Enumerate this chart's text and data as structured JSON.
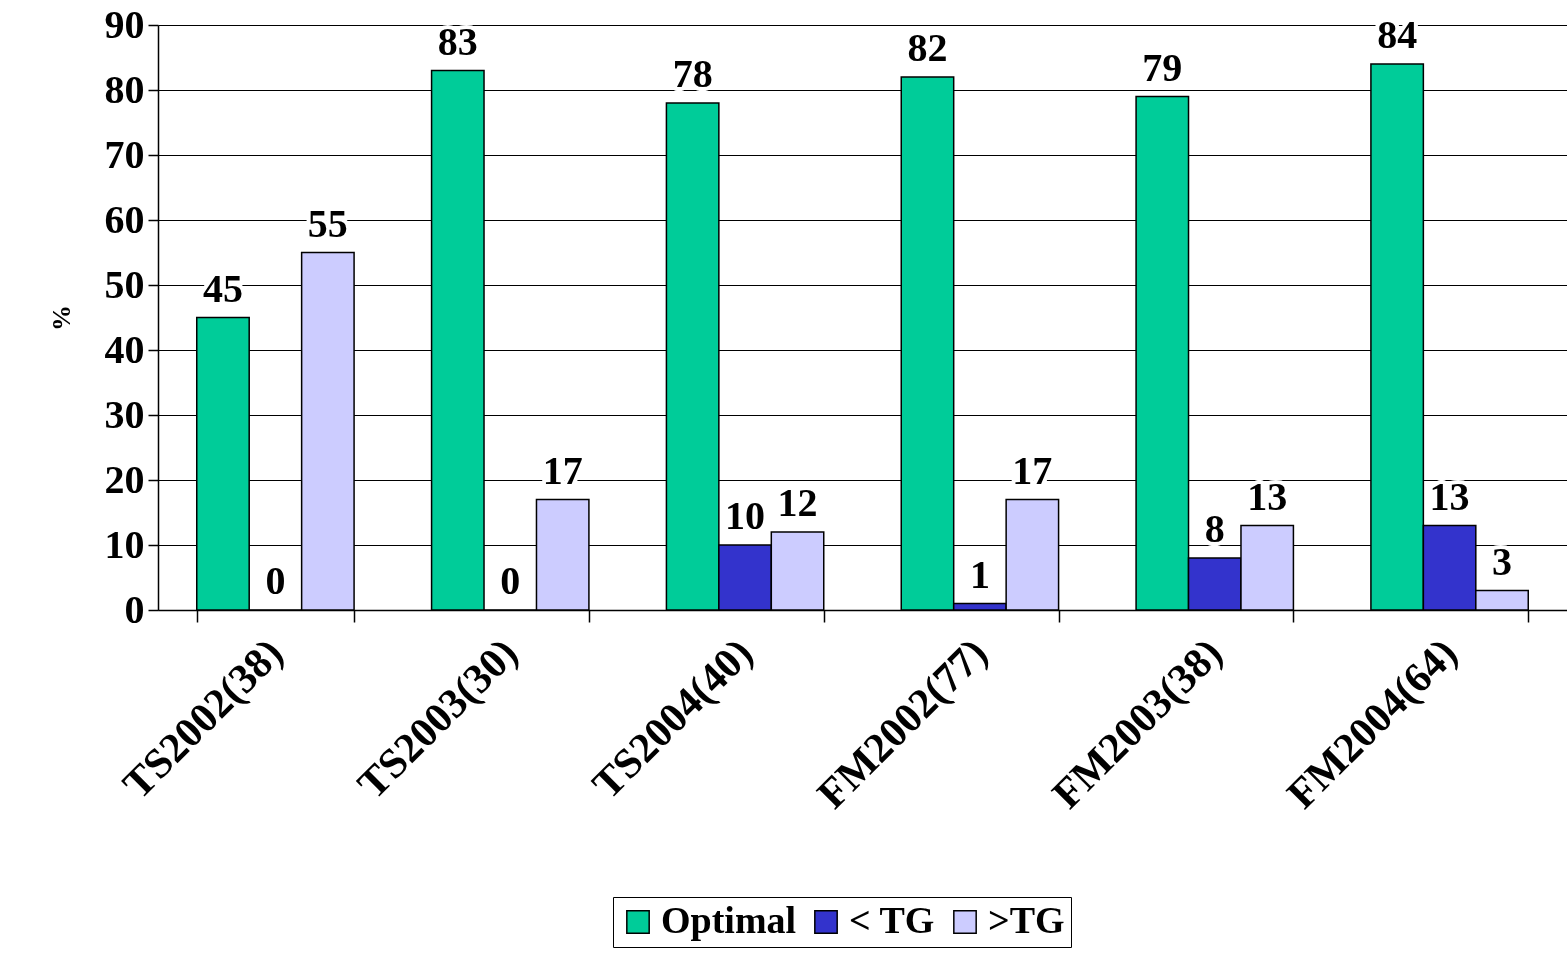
{
  "chart_data": {
    "type": "bar",
    "ylabel": "%",
    "categories": [
      "TS2002(38)",
      "TS2003(30)",
      "TS2004(40)",
      "FM2002(77)",
      "FM2003(38)",
      "FM2004(64)"
    ],
    "series": [
      {
        "name": "Optimal",
        "color": "#00cc99",
        "values": [
          45,
          83,
          78,
          82,
          79,
          84
        ]
      },
      {
        "name": "< TG",
        "color": "#3333cc",
        "values": [
          0,
          0,
          10,
          1,
          8,
          13
        ]
      },
      {
        "name": ">TG",
        "color": "#ccccff",
        "values": [
          55,
          17,
          12,
          17,
          13,
          3
        ]
      }
    ],
    "ylim": [
      0,
      90
    ],
    "yticks": [
      0,
      10,
      20,
      30,
      40,
      50,
      60,
      70,
      80,
      90
    ],
    "grid": "y",
    "legend": "bottom",
    "data_labels": true
  }
}
